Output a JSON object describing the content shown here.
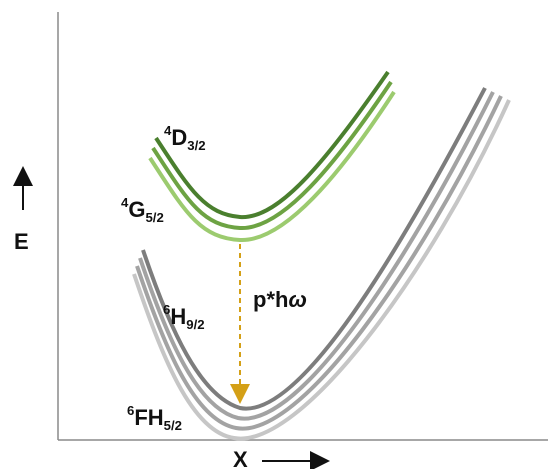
{
  "axes": {
    "y_label": "E",
    "x_label": "X",
    "y_arrow_icon": "up-arrow-icon",
    "x_arrow_icon": "right-arrow-icon"
  },
  "states": {
    "upper": {
      "sup": "4",
      "base": "D",
      "sub": "3/2"
    },
    "excited": {
      "sup": "4",
      "base": "G",
      "sub": "5/2"
    },
    "ground_upper": {
      "sup": "6",
      "base": "H",
      "sub": "9/2"
    },
    "ground_lower": {
      "sup": "6",
      "base": "FH",
      "sub": "5/2"
    }
  },
  "transition": {
    "label": "p*hω",
    "arrow_icon": "dashed-down-arrow-icon"
  },
  "colors": {
    "green_dark": "#4a7f2e",
    "green_mid": "#6da343",
    "green_light": "#9ccb6f",
    "gray_dark": "#7d7d7d",
    "gray_mid": "#a3a3a3",
    "gray_light": "#c6c6c6",
    "transition_arrow": "#d4a017",
    "axis": "#8a8a8a"
  }
}
